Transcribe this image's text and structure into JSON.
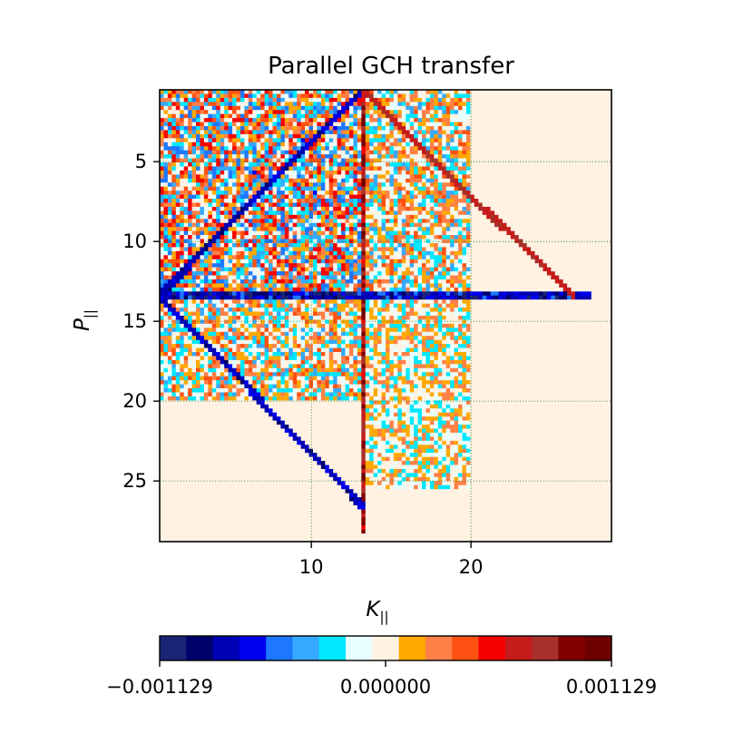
{
  "chart_data": {
    "type": "heatmap",
    "title": "Parallel GCH transfer",
    "xlabel": "K",
    "xlabel_sub": "||",
    "ylabel": "P",
    "ylabel_sub": "||",
    "xlim": [
      0.5,
      28.8
    ],
    "ylim": [
      28.8,
      0.5
    ],
    "y_inverted": true,
    "x_ticks": [
      10,
      20
    ],
    "x_tick_labels": [
      "10",
      "20"
    ],
    "y_ticks": [
      5,
      10,
      15,
      20,
      25
    ],
    "y_tick_labels": [
      "5",
      "10",
      "15",
      "20",
      "25"
    ],
    "grid": true,
    "grid_style": "dotted",
    "colorbar": {
      "orientation": "horizontal",
      "placement": "bottom",
      "min": -0.001129,
      "max": 0.001129,
      "tick_labels": [
        "−0.001129",
        "0.000000",
        "0.001129"
      ],
      "colors": [
        "#1a2476",
        "#00006b",
        "#0000b4",
        "#0000ee",
        "#1e78ff",
        "#34a9ff",
        "#00e8ff",
        "#e8ffff",
        "#fff2e2",
        "#ffa800",
        "#ff8047",
        "#ff5111",
        "#f70000",
        "#c51b1b",
        "#a8302a",
        "#820000",
        "#6e0000"
      ]
    },
    "grid_resolution": 112,
    "features": [
      {
        "kind": "vertical-line",
        "x": 13.2,
        "y_range": [
          0.5,
          28.2
        ],
        "value": 0.0011
      },
      {
        "kind": "horizontal-line",
        "y": 13.4,
        "x_range": [
          0.5,
          27.6
        ],
        "value": -0.0011
      },
      {
        "kind": "diagonal",
        "from": [
          13.2,
          0.5
        ],
        "to": [
          0.5,
          13.4
        ],
        "value": -0.0009
      },
      {
        "kind": "diagonal",
        "from": [
          13.2,
          0.5
        ],
        "to": [
          26.4,
          13.4
        ],
        "value": 0.0008
      },
      {
        "kind": "diagonal",
        "from": [
          0.5,
          13.4
        ],
        "to": [
          13.2,
          26.6
        ],
        "value": -0.0009
      },
      {
        "kind": "noise-region",
        "x_range": [
          0.5,
          13.2
        ],
        "y_range": [
          0.5,
          13.4
        ],
        "amplitude": 0.0006
      },
      {
        "kind": "noise-region",
        "x_range": [
          13.2,
          20.0
        ],
        "y_range": [
          0.5,
          13.4
        ],
        "amplitude": 0.0004
      },
      {
        "kind": "noise-region",
        "x_range": [
          0.5,
          13.2
        ],
        "y_range": [
          13.4,
          20.0
        ],
        "amplitude": 0.0004
      },
      {
        "kind": "noise-region",
        "x_range": [
          13.2,
          20.0
        ],
        "y_range": [
          13.4,
          25.5
        ],
        "amplitude": 0.0003
      },
      {
        "kind": "background",
        "x_range": [
          20.0,
          28.8
        ],
        "y_range": [
          0.5,
          13.4
        ],
        "value": 5e-05
      },
      {
        "kind": "background",
        "x_range": [
          0.5,
          28.8
        ],
        "y_range": [
          21.0,
          28.8
        ],
        "value": -5e-05
      }
    ]
  }
}
